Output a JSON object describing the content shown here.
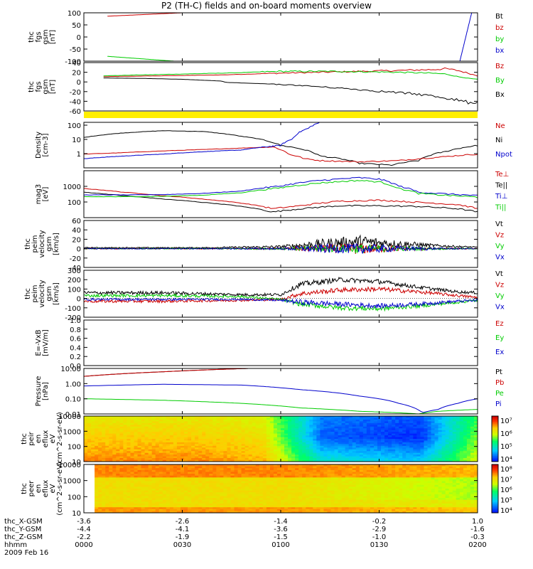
{
  "title": "P2 (TH-C) fields and on-board moments overview",
  "chart_data": [
    {
      "type": "line",
      "id": "fgs_full",
      "ylabel": [
        "thc",
        "fgs",
        "gsm",
        "[nT]"
      ],
      "ylim": [
        -100,
        100
      ],
      "yticks": [
        "100",
        "50",
        "0",
        "-50",
        "-100"
      ],
      "legend": [
        {
          "label": "Bt",
          "color": "#000000"
        },
        {
          "label": "bz",
          "color": "#cc0000"
        },
        {
          "label": "by",
          "color": "#00cc00"
        },
        {
          "label": "bx",
          "color": "#0000cc"
        }
      ],
      "series": [
        {
          "name": "bz",
          "x": [
            0.06,
            0.25
          ],
          "y": [
            86,
            100
          ]
        },
        {
          "name": "by",
          "x": [
            0.06,
            0.23
          ],
          "y": [
            -80,
            -100
          ]
        },
        {
          "name": "bx",
          "x": [
            0.06,
            0.1
          ],
          "y": [
            -100,
            -100
          ]
        },
        {
          "name": "bx",
          "x": [
            0.955,
            0.985
          ],
          "y": [
            -100,
            100
          ]
        }
      ]
    },
    {
      "type": "line",
      "id": "fgs_zoom",
      "ylabel": [
        "thc",
        "fgs",
        "gsm",
        "[nT]"
      ],
      "ylim": [
        -70,
        40
      ],
      "yticks": [
        "40",
        "20",
        "0",
        "-20",
        "-40",
        "-60"
      ],
      "legend": [
        {
          "label": "Bz",
          "color": "#cc0000"
        },
        {
          "label": "By",
          "color": "#00cc00"
        },
        {
          "label": "Bx",
          "color": "#000000"
        }
      ],
      "series": [
        {
          "name": "Bz",
          "x": [
            0.05,
            0.2,
            0.35,
            0.5,
            0.65,
            0.8,
            0.88,
            0.92,
            0.95,
            0.98,
            1.0
          ],
          "y": [
            8,
            10,
            12,
            16,
            19,
            22,
            24,
            26,
            22,
            15,
            10
          ]
        },
        {
          "name": "By",
          "x": [
            0.05,
            0.2,
            0.35,
            0.5,
            0.65,
            0.8,
            0.88,
            0.92,
            0.95,
            0.98,
            1.0
          ],
          "y": [
            10,
            13,
            16,
            20,
            20,
            18,
            16,
            14,
            8,
            4,
            2
          ]
        },
        {
          "name": "Bx",
          "x": [
            0.05,
            0.15,
            0.25,
            0.35,
            0.36,
            0.45,
            0.55,
            0.65,
            0.75,
            0.85,
            0.92,
            0.97,
            1.0
          ],
          "y": [
            5,
            4,
            2,
            -2,
            -5,
            -8,
            -12,
            -18,
            -25,
            -32,
            -40,
            -50,
            -50
          ]
        }
      ]
    },
    {
      "type": "line",
      "id": "density",
      "ylabel": [
        "Density",
        "[cm-3]"
      ],
      "scale": "log",
      "ylim": [
        0.1,
        100
      ],
      "yticks": [
        "100",
        "10",
        "1"
      ],
      "legend": [
        {
          "label": "Ne",
          "color": "#cc0000"
        },
        {
          "label": "Ni",
          "color": "#000000"
        },
        {
          "label": "Npot",
          "color": "#0000cc"
        }
      ],
      "series": [
        {
          "name": "Ni",
          "x": [
            0.0,
            0.1,
            0.2,
            0.3,
            0.4,
            0.5,
            0.6,
            0.7,
            0.78,
            0.85,
            0.92,
            1.0
          ],
          "y": [
            10,
            20,
            28,
            25,
            12,
            3,
            0.6,
            0.2,
            0.15,
            0.3,
            1.2,
            3
          ]
        },
        {
          "name": "Ne",
          "x": [
            0.0,
            0.1,
            0.2,
            0.3,
            0.4,
            0.48,
            0.52,
            0.56,
            0.6,
            0.7,
            0.8,
            0.9,
            1.0
          ],
          "y": [
            0.8,
            1.0,
            1.3,
            1.6,
            2.0,
            2.4,
            0.8,
            0.4,
            0.3,
            0.25,
            0.3,
            0.5,
            0.8
          ]
        },
        {
          "name": "Npot",
          "x": [
            0.0,
            0.2,
            0.4,
            0.5,
            0.53,
            0.57,
            0.6
          ],
          "y": [
            0.4,
            0.8,
            1.5,
            3,
            8,
            40,
            100
          ]
        }
      ]
    },
    {
      "type": "line",
      "id": "temperature",
      "ylabel": [
        "mag3",
        "[eV]"
      ],
      "scale": "log",
      "ylim": [
        30,
        10000
      ],
      "yticks": [
        "1000",
        "100"
      ],
      "legend": [
        {
          "label": "Te⊥",
          "color": "#cc0000"
        },
        {
          "label": "Te||",
          "color": "#000000"
        },
        {
          "label": "Ti⊥",
          "color": "#0000cc"
        },
        {
          "label": "Ti||",
          "color": "#00cc00"
        }
      ],
      "series": [
        {
          "name": "Te||",
          "x": [
            0.0,
            0.1,
            0.2,
            0.3,
            0.4,
            0.48,
            0.55,
            0.65,
            0.75,
            0.85,
            0.95,
            1.0
          ],
          "y": [
            700,
            450,
            300,
            200,
            120,
            60,
            90,
            130,
            130,
            120,
            90,
            60
          ]
        },
        {
          "name": "Te⊥",
          "x": [
            0.0,
            0.1,
            0.2,
            0.3,
            0.4,
            0.48,
            0.55,
            0.65,
            0.75,
            0.85,
            0.95,
            1.0
          ],
          "y": [
            1100,
            700,
            450,
            300,
            180,
            90,
            130,
            230,
            260,
            200,
            150,
            90
          ]
        },
        {
          "name": "Ti⊥",
          "x": [
            0.0,
            0.1,
            0.2,
            0.3,
            0.4,
            0.5,
            0.6,
            0.7,
            0.75,
            0.8,
            0.85,
            0.9,
            1.0
          ],
          "y": [
            500,
            500,
            520,
            600,
            800,
            1500,
            3000,
            4200,
            3500,
            1500,
            700,
            600,
            450
          ]
        },
        {
          "name": "Ti||",
          "x": [
            0.0,
            0.1,
            0.2,
            0.3,
            0.4,
            0.5,
            0.6,
            0.7,
            0.75,
            0.8,
            0.85,
            0.9,
            1.0
          ],
          "y": [
            400,
            400,
            420,
            480,
            650,
            1200,
            2200,
            3000,
            2500,
            1100,
            600,
            500,
            380
          ]
        }
      ]
    },
    {
      "type": "line",
      "id": "peim_velocity",
      "ylabel": [
        "thc",
        "peim",
        "velocity",
        "gsm",
        "[km/s]"
      ],
      "ylim": [
        -40,
        60
      ],
      "yticks": [
        "60",
        "40",
        "20",
        "0",
        "-20",
        "-40"
      ],
      "legend": [
        {
          "label": "Vt",
          "color": "#000000"
        },
        {
          "label": "Vz",
          "color": "#cc0000"
        },
        {
          "label": "Vy",
          "color": "#00cc00"
        },
        {
          "label": "Vx",
          "color": "#0000cc"
        }
      ],
      "series": [
        {
          "name": "Vt",
          "x": [
            0.0,
            0.3,
            0.5,
            0.6,
            0.7,
            0.8,
            0.9,
            1.0
          ],
          "y": [
            2,
            2,
            4,
            10,
            15,
            10,
            6,
            3
          ],
          "noise": [
            1,
            1,
            3,
            10,
            14,
            8,
            3,
            1
          ]
        },
        {
          "name": "Vz",
          "x": [
            0.0,
            0.3,
            0.5,
            0.6,
            0.7,
            0.8,
            0.9,
            1.0
          ],
          "y": [
            0,
            0,
            0,
            0,
            0,
            0,
            0,
            0
          ],
          "noise": [
            1,
            1,
            2,
            8,
            12,
            6,
            2,
            1
          ]
        },
        {
          "name": "Vy",
          "x": [
            0.0,
            0.3,
            0.5,
            0.6,
            0.7,
            0.8,
            0.9,
            1.0
          ],
          "y": [
            0,
            0,
            0,
            0,
            0,
            0,
            0,
            0
          ],
          "noise": [
            1,
            1,
            2,
            7,
            10,
            5,
            2,
            1
          ]
        },
        {
          "name": "Vx",
          "x": [
            0.0,
            0.3,
            0.5,
            0.6,
            0.7,
            0.8,
            0.9,
            1.0
          ],
          "y": [
            0,
            0,
            0,
            0,
            0,
            0,
            0,
            0
          ],
          "noise": [
            1,
            1,
            2,
            9,
            11,
            6,
            2,
            1
          ]
        }
      ]
    },
    {
      "type": "line",
      "id": "peem_velocity",
      "ylabel": [
        "thc",
        "peim",
        "velocity",
        "gsm",
        "[km/s]"
      ],
      "ylim": [
        -200,
        300
      ],
      "yticks": [
        "300",
        "200",
        "100",
        "0",
        "-100",
        "-200"
      ],
      "legend": [
        {
          "label": "Vt",
          "color": "#000000"
        },
        {
          "label": "Vz",
          "color": "#cc0000"
        },
        {
          "label": "Vy",
          "color": "#00cc00"
        },
        {
          "label": "Vx",
          "color": "#0000cc"
        }
      ],
      "series": [
        {
          "name": "Vt",
          "x": [
            0.0,
            0.2,
            0.4,
            0.5,
            0.55,
            0.65,
            0.75,
            0.85,
            0.95,
            1.0
          ],
          "y": [
            60,
            60,
            40,
            40,
            150,
            200,
            180,
            120,
            70,
            60
          ],
          "noise": [
            18,
            18,
            15,
            15,
            30,
            25,
            25,
            20,
            15,
            15
          ]
        },
        {
          "name": "Vz",
          "x": [
            0.0,
            0.2,
            0.4,
            0.5,
            0.55,
            0.65,
            0.75,
            0.85,
            0.95,
            1.0
          ],
          "y": [
            -30,
            -30,
            -20,
            -10,
            50,
            90,
            100,
            70,
            30,
            10
          ],
          "noise": [
            15,
            15,
            12,
            12,
            25,
            25,
            25,
            20,
            15,
            15
          ]
        },
        {
          "name": "Vy",
          "x": [
            0.0,
            0.2,
            0.4,
            0.5,
            0.55,
            0.65,
            0.75,
            0.85,
            0.95,
            1.0
          ],
          "y": [
            30,
            30,
            20,
            -10,
            -60,
            -100,
            -110,
            -80,
            -40,
            -20
          ],
          "noise": [
            15,
            15,
            12,
            12,
            25,
            25,
            25,
            20,
            15,
            15
          ]
        },
        {
          "name": "Vx",
          "x": [
            0.0,
            0.2,
            0.4,
            0.5,
            0.55,
            0.65,
            0.75,
            0.85,
            0.95,
            1.0
          ],
          "y": [
            -10,
            -10,
            -10,
            -20,
            -40,
            -60,
            -80,
            -60,
            -30,
            -20
          ],
          "noise": [
            12,
            12,
            10,
            10,
            30,
            25,
            25,
            20,
            15,
            15
          ]
        }
      ]
    },
    {
      "type": "line",
      "id": "efield",
      "ylabel": [
        "E=-VxB",
        "[mV/m]"
      ],
      "ylim": [
        0,
        1
      ],
      "yticks": [
        "1.0",
        "0.8",
        "0.6",
        "0.4",
        "0.2",
        "0.0"
      ],
      "legend": [
        {
          "label": "Ez",
          "color": "#cc0000"
        },
        {
          "label": "Ey",
          "color": "#00cc00"
        },
        {
          "label": "Ex",
          "color": "#0000cc"
        }
      ],
      "series": []
    },
    {
      "type": "line",
      "id": "pressure",
      "ylabel": [
        "Pressure",
        "[nPa]"
      ],
      "scale": "log",
      "ylim": [
        0.01,
        10
      ],
      "yticks": [
        "10.00",
        "1.00",
        "0.10",
        "0.01"
      ],
      "legend": [
        {
          "label": "Pt",
          "color": "#000000"
        },
        {
          "label": "Pb",
          "color": "#cc0000"
        },
        {
          "label": "Pe",
          "color": "#00cc00"
        },
        {
          "label": "Pi",
          "color": "#0000cc"
        }
      ],
      "series": [
        {
          "name": "Pt",
          "x": [
            0.0,
            0.2,
            0.42
          ],
          "y": [
            3,
            6,
            10
          ]
        },
        {
          "name": "Pb",
          "x": [
            0.0,
            0.2,
            0.42
          ],
          "y": [
            3,
            6,
            10
          ]
        },
        {
          "name": "Pi",
          "x": [
            0.0,
            0.2,
            0.4,
            0.55,
            0.7,
            0.8,
            0.86,
            0.9,
            0.95,
            1.0
          ],
          "y": [
            0.7,
            0.9,
            0.8,
            0.4,
            0.15,
            0.05,
            0.012,
            0.02,
            0.05,
            0.1
          ]
        },
        {
          "name": "Pe",
          "x": [
            0.0,
            0.2,
            0.4,
            0.55,
            0.7,
            0.8,
            0.85,
            0.9,
            1.0
          ],
          "y": [
            0.1,
            0.08,
            0.05,
            0.025,
            0.015,
            0.012,
            0.01,
            0.015,
            0.02
          ]
        }
      ]
    },
    {
      "type": "heatmap",
      "id": "peir_spec",
      "ylabel": [
        "thc",
        "peir",
        "en",
        "eflux",
        "eV",
        "(cm^2-s-sr-eV)"
      ],
      "scale": "log",
      "ylim": [
        7,
        20000
      ],
      "yticks": [
        "10000",
        "1000",
        "100",
        "10"
      ],
      "colorbar": {
        "min_exp": 4,
        "max_exp": 7,
        "labels": [
          "10⁷",
          "10⁶",
          "10⁵",
          "10⁴"
        ]
      },
      "cmap": [
        [
          0.0,
          "#0000ff"
        ],
        [
          0.25,
          "#00ccff"
        ],
        [
          0.45,
          "#00ff66"
        ],
        [
          0.6,
          "#ccff00"
        ],
        [
          0.75,
          "#ffcc00"
        ],
        [
          0.9,
          "#ff3300"
        ],
        [
          1.0,
          "#cc0000"
        ]
      ]
    },
    {
      "type": "heatmap",
      "id": "peer_spec",
      "ylabel": [
        "thc",
        "peer",
        "en",
        "eflux",
        "eV",
        "(cm^2-s-sr-eV)"
      ],
      "scale": "log",
      "ylim": [
        7,
        20000
      ],
      "yticks": [
        "10000",
        "1000",
        "100",
        "10"
      ],
      "colorbar": {
        "min_exp": 4,
        "max_exp": 8,
        "labels": [
          "10⁸",
          "10⁷",
          "10⁶",
          "10⁵",
          "10⁴"
        ]
      },
      "cmap": [
        [
          0.0,
          "#0000ff"
        ],
        [
          0.25,
          "#00ccff"
        ],
        [
          0.45,
          "#00ff66"
        ],
        [
          0.6,
          "#ccff00"
        ],
        [
          0.75,
          "#ffcc00"
        ],
        [
          0.9,
          "#ff3300"
        ],
        [
          1.0,
          "#cc0000"
        ]
      ]
    }
  ],
  "xaxis": {
    "row_labels": [
      "thc_X-GSM",
      "thc_Y-GSM",
      "thc_Z-GSM",
      "hhmm",
      "2009 Feb 16"
    ],
    "columns": [
      [
        "-3.6",
        "-4.4",
        "-2.2",
        "0000"
      ],
      [
        "-2.6",
        "-4.1",
        "-1.9",
        "0030"
      ],
      [
        "-1.4",
        "-3.6",
        "-1.5",
        "0100"
      ],
      [
        "-0.2",
        "-2.9",
        "-1.0",
        "0130"
      ],
      [
        "1.0",
        "-1.6",
        "-0.3",
        "0200"
      ]
    ]
  }
}
